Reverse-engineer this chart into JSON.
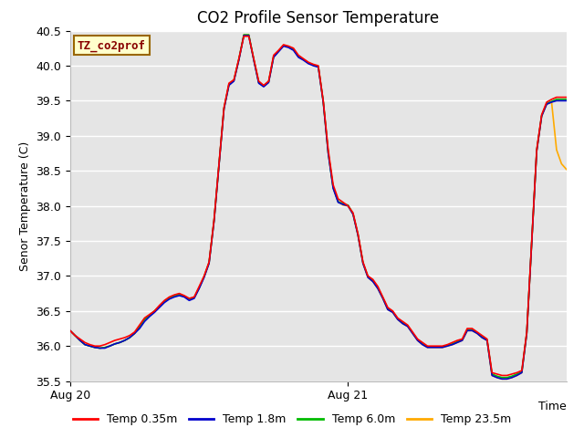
{
  "title": "CO2 Profile Sensor Temperature",
  "ylabel": "Senor Temperature (C)",
  "xlabel": "Time",
  "ylim": [
    35.5,
    40.5
  ],
  "xtick_positions": [
    0.0,
    0.56
  ],
  "xtick_labels": [
    "Aug 20",
    "Aug 21"
  ],
  "ytick_values": [
    35.5,
    36.0,
    36.5,
    37.0,
    37.5,
    38.0,
    38.5,
    39.0,
    39.5,
    40.0,
    40.5
  ],
  "bg_color": "#e5e5e5",
  "legend_label": "TZ_co2prof",
  "legend_bg": "#ffffcc",
  "legend_border": "#996600",
  "series_labels": [
    "Temp 0.35m",
    "Temp 1.8m",
    "Temp 6.0m",
    "Temp 23.5m"
  ],
  "series_colors": [
    "#ff0000",
    "#0000cc",
    "#00bb00",
    "#ffaa00"
  ],
  "line_width": 1.2,
  "x": [
    0.0,
    0.01,
    0.02,
    0.03,
    0.04,
    0.05,
    0.06,
    0.07,
    0.08,
    0.09,
    0.1,
    0.11,
    0.12,
    0.13,
    0.14,
    0.15,
    0.16,
    0.17,
    0.18,
    0.19,
    0.2,
    0.21,
    0.22,
    0.23,
    0.24,
    0.25,
    0.26,
    0.27,
    0.28,
    0.29,
    0.3,
    0.31,
    0.32,
    0.33,
    0.34,
    0.35,
    0.36,
    0.37,
    0.38,
    0.39,
    0.4,
    0.41,
    0.42,
    0.43,
    0.44,
    0.45,
    0.46,
    0.47,
    0.48,
    0.49,
    0.5,
    0.51,
    0.52,
    0.53,
    0.54,
    0.55,
    0.56,
    0.57,
    0.58,
    0.59,
    0.6,
    0.61,
    0.62,
    0.63,
    0.64,
    0.65,
    0.66,
    0.67,
    0.68,
    0.69,
    0.7,
    0.71,
    0.72,
    0.73,
    0.74,
    0.75,
    0.76,
    0.77,
    0.78,
    0.79,
    0.8,
    0.81,
    0.82,
    0.83,
    0.84,
    0.85,
    0.86,
    0.87,
    0.88,
    0.89,
    0.9,
    0.91,
    0.92,
    0.93,
    0.94,
    0.95,
    0.96,
    0.97,
    0.98,
    0.99,
    1.0
  ],
  "temp_035": [
    36.22,
    36.15,
    36.1,
    36.05,
    36.02,
    36.0,
    36.0,
    36.02,
    36.05,
    36.08,
    36.1,
    36.12,
    36.15,
    36.2,
    36.3,
    36.4,
    36.45,
    36.5,
    36.58,
    36.65,
    36.7,
    36.73,
    36.75,
    36.72,
    36.68,
    36.7,
    36.85,
    37.0,
    37.2,
    37.8,
    38.6,
    39.4,
    39.75,
    39.8,
    40.1,
    40.42,
    40.42,
    40.1,
    39.78,
    39.72,
    39.78,
    40.15,
    40.22,
    40.3,
    40.28,
    40.25,
    40.15,
    40.1,
    40.05,
    40.02,
    40.0,
    39.5,
    38.8,
    38.3,
    38.1,
    38.05,
    38.0,
    37.9,
    37.6,
    37.2,
    37.0,
    36.95,
    36.85,
    36.7,
    36.55,
    36.5,
    36.4,
    36.35,
    36.3,
    36.2,
    36.1,
    36.05,
    36.0,
    36.0,
    36.0,
    36.0,
    36.02,
    36.05,
    36.08,
    36.1,
    36.25,
    36.25,
    36.2,
    36.15,
    36.1,
    35.62,
    35.6,
    35.58,
    35.58,
    35.6,
    35.62,
    35.65,
    36.2,
    37.5,
    38.8,
    39.3,
    39.48,
    39.52,
    39.55,
    39.55,
    39.55
  ],
  "temp_18": [
    36.22,
    36.15,
    36.08,
    36.02,
    36.0,
    35.98,
    35.97,
    35.97,
    36.0,
    36.03,
    36.05,
    36.08,
    36.12,
    36.18,
    36.25,
    36.35,
    36.42,
    36.48,
    36.55,
    36.62,
    36.67,
    36.7,
    36.72,
    36.7,
    36.65,
    36.68,
    36.82,
    36.98,
    37.18,
    37.78,
    38.58,
    39.38,
    39.72,
    39.78,
    40.08,
    40.43,
    40.43,
    40.08,
    39.75,
    39.7,
    39.76,
    40.12,
    40.2,
    40.28,
    40.26,
    40.22,
    40.12,
    40.08,
    40.03,
    40.0,
    39.98,
    39.48,
    38.75,
    38.25,
    38.05,
    38.02,
    38.0,
    37.88,
    37.58,
    37.18,
    36.98,
    36.92,
    36.82,
    36.68,
    36.52,
    36.48,
    36.38,
    36.32,
    36.28,
    36.18,
    36.08,
    36.02,
    35.98,
    35.98,
    35.98,
    35.98,
    36.0,
    36.02,
    36.05,
    36.08,
    36.22,
    36.22,
    36.18,
    36.12,
    36.08,
    35.58,
    35.55,
    35.53,
    35.53,
    35.55,
    35.58,
    35.62,
    36.18,
    37.48,
    38.78,
    39.28,
    39.45,
    39.48,
    39.5,
    39.5,
    39.5
  ],
  "temp_60": [
    36.22,
    36.15,
    36.08,
    36.02,
    36.0,
    35.98,
    35.97,
    35.98,
    36.0,
    36.03,
    36.05,
    36.08,
    36.12,
    36.18,
    36.28,
    36.38,
    36.44,
    36.5,
    36.57,
    36.64,
    36.69,
    36.72,
    36.74,
    36.71,
    36.67,
    36.69,
    36.83,
    36.99,
    37.19,
    37.79,
    38.59,
    39.39,
    39.73,
    39.79,
    40.09,
    40.44,
    40.44,
    40.09,
    39.76,
    39.71,
    39.77,
    40.13,
    40.21,
    40.29,
    40.27,
    40.23,
    40.13,
    40.09,
    40.04,
    40.01,
    39.99,
    39.49,
    38.76,
    38.26,
    38.06,
    38.03,
    38.01,
    37.89,
    37.59,
    37.19,
    36.99,
    36.93,
    36.83,
    36.69,
    36.53,
    36.49,
    36.39,
    36.33,
    36.29,
    36.19,
    36.09,
    36.03,
    35.99,
    35.99,
    35.99,
    35.99,
    36.01,
    36.03,
    36.06,
    36.09,
    36.23,
    36.23,
    36.19,
    36.13,
    36.09,
    35.6,
    35.57,
    35.55,
    35.55,
    35.57,
    35.6,
    35.63,
    36.19,
    37.49,
    38.79,
    39.29,
    39.46,
    39.49,
    39.52,
    39.52,
    39.52
  ],
  "temp_235": [
    36.22,
    36.15,
    36.08,
    36.02,
    36.0,
    35.98,
    35.97,
    35.98,
    36.0,
    36.03,
    36.05,
    36.08,
    36.12,
    36.18,
    36.28,
    36.38,
    36.44,
    36.5,
    36.57,
    36.64,
    36.69,
    36.72,
    36.74,
    36.71,
    36.67,
    36.69,
    36.83,
    36.99,
    37.19,
    37.79,
    38.59,
    39.39,
    39.73,
    39.79,
    40.09,
    40.44,
    40.44,
    40.09,
    39.76,
    39.71,
    39.77,
    40.13,
    40.21,
    40.29,
    40.27,
    40.23,
    40.13,
    40.09,
    40.04,
    40.01,
    39.99,
    39.49,
    38.76,
    38.26,
    38.06,
    38.01,
    38.0,
    37.88,
    37.58,
    37.18,
    36.98,
    36.92,
    36.82,
    36.68,
    36.52,
    36.48,
    36.38,
    36.32,
    36.28,
    36.18,
    36.08,
    36.02,
    35.98,
    35.98,
    35.98,
    35.98,
    36.0,
    36.02,
    36.05,
    36.08,
    36.22,
    36.22,
    36.18,
    36.12,
    36.08,
    35.58,
    35.55,
    35.53,
    35.53,
    35.55,
    35.58,
    35.62,
    36.18,
    37.48,
    38.78,
    39.28,
    39.45,
    39.48,
    38.8,
    38.6,
    38.52
  ]
}
